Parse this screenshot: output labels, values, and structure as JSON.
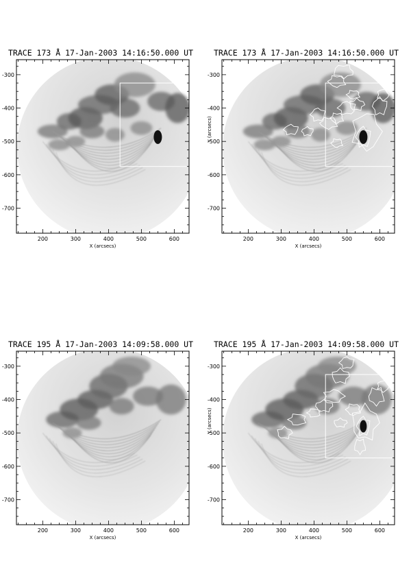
{
  "figure": {
    "panels": [
      {
        "title": "TRACE 173 Å 17-Jan-2003 14:16:50.000 UT",
        "xlabel": "X (arcsecs)",
        "ylabel": "",
        "xticks": [
          "200",
          "300",
          "400",
          "500",
          "600"
        ],
        "yticks": [
          "-300",
          "-400",
          "-500",
          "-600",
          "-700"
        ],
        "contours": false,
        "box": true
      },
      {
        "title": "TRACE 173 Å 17-Jan-2003 14:16:50.000 UT",
        "xlabel": "X (arcsecs)",
        "ylabel": "Y (arcsecs)",
        "xticks": [
          "200",
          "300",
          "400",
          "500",
          "600"
        ],
        "yticks": [
          "-300",
          "-400",
          "-500",
          "-600",
          "-700"
        ],
        "contours": true,
        "box": true
      },
      {
        "title": "TRACE 195 Å 17-Jan-2003 14:09:58.000 UT",
        "xlabel": "X (arcsecs)",
        "ylabel": "",
        "xticks": [
          "200",
          "300",
          "400",
          "500",
          "600"
        ],
        "yticks": [
          "-300",
          "-400",
          "-500",
          "-600",
          "-700"
        ],
        "contours": false,
        "box": false
      },
      {
        "title": "TRACE 195 Å 17-Jan-2003 14:09:58.000 UT",
        "xlabel": "X (arcsecs)",
        "ylabel": "Y (arcsecs)",
        "xticks": [
          "200",
          "300",
          "400",
          "500",
          "600"
        ],
        "yticks": [
          "-300",
          "-400",
          "-500",
          "-600",
          "-700"
        ],
        "contours": true,
        "box": true
      }
    ]
  },
  "chart_data": [
    {
      "type": "heatmap",
      "title": "TRACE 173 Å 17-Jan-2003 14:16:50.000 UT",
      "xlabel": "X (arcsecs)",
      "ylabel": "",
      "xlim": [
        120,
        645
      ],
      "ylim": [
        -775,
        -255
      ],
      "overlay_box": {
        "x": [
          435,
          645
        ],
        "y": [
          -575,
          -325
        ]
      }
    },
    {
      "type": "heatmap",
      "title": "TRACE 173 Å 17-Jan-2003 14:16:50.000 UT",
      "xlabel": "X (arcsecs)",
      "ylabel": "Y (arcsecs)",
      "xlim": [
        120,
        645
      ],
      "ylim": [
        -775,
        -255
      ],
      "overlay_box": {
        "x": [
          435,
          645
        ],
        "y": [
          -575,
          -325
        ]
      }
    },
    {
      "type": "heatmap",
      "title": "TRACE 195 Å 17-Jan-2003 14:09:58.000 UT",
      "xlabel": "X (arcsecs)",
      "ylabel": "",
      "xlim": [
        120,
        645
      ],
      "ylim": [
        -775,
        -255
      ]
    },
    {
      "type": "heatmap",
      "title": "TRACE 195 Å 17-Jan-2003 14:09:58.000 UT",
      "xlabel": "X (arcsecs)",
      "ylabel": "Y (arcsecs)",
      "xlim": [
        120,
        645
      ],
      "ylim": [
        -775,
        -255
      ],
      "overlay_box": {
        "x": [
          435,
          645
        ],
        "y": [
          -575,
          -325
        ]
      }
    }
  ]
}
